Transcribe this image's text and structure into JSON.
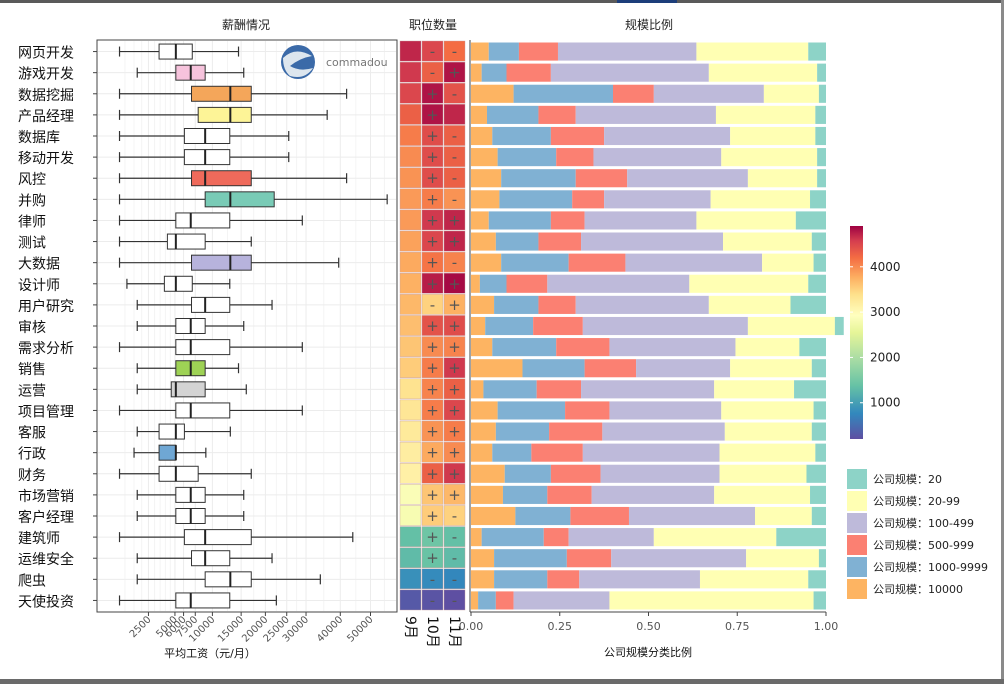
{
  "chart_data": [
    {
      "type": "boxplot",
      "title": "薪酬情况",
      "xlabel": "平均工资（元/月）",
      "ylabel": "",
      "x_scale": "sqrt",
      "x_ticks": [
        2500,
        5000,
        6000,
        7500,
        10000,
        15000,
        20000,
        25000,
        30000,
        40000,
        50000
      ],
      "xlim": [
        700,
        60000
      ],
      "grid": true,
      "categories": [
        "网页开发",
        "游戏开发",
        "数据挖掘",
        "产品经理",
        "数据库",
        "移动开发",
        "风控",
        "并购",
        "律师",
        "测试",
        "大数据",
        "设计师",
        "用户研究",
        "审核",
        "需求分析",
        "销售",
        "运营",
        "项目管理",
        "客服",
        "行政",
        "财务",
        "市场营销",
        "客户经理",
        "建筑师",
        "运维安全",
        "爬虫",
        "天使投资"
      ],
      "boxes": [
        {
          "min": 750,
          "q1": 3400,
          "median": 5100,
          "q3": 7100,
          "max": 14500,
          "fill": "#ffffff"
        },
        {
          "min": 1700,
          "q1": 5100,
          "median": 6900,
          "q3": 8900,
          "max": 15500,
          "fill": "#f6c3dc"
        },
        {
          "min": 750,
          "q1": 7000,
          "median": 13000,
          "q3": 17000,
          "max": 42000,
          "fill": "#f4a65a"
        },
        {
          "min": 750,
          "q1": 7900,
          "median": 13000,
          "q3": 17000,
          "max": 36000,
          "fill": "#fdf497"
        },
        {
          "min": 750,
          "q1": 6100,
          "median": 8900,
          "q3": 12900,
          "max": 25500,
          "fill": "#ffffff"
        },
        {
          "min": 750,
          "q1": 6100,
          "median": 8900,
          "q3": 12900,
          "max": 25500,
          "fill": "#ffffff"
        },
        {
          "min": 750,
          "q1": 7000,
          "median": 8900,
          "q3": 17000,
          "max": 42000,
          "fill": "#ef6a5b"
        },
        {
          "min": 750,
          "q1": 8900,
          "median": 13000,
          "q3": 22000,
          "max": 56000,
          "fill": "#79cbb6"
        },
        {
          "min": 750,
          "q1": 5100,
          "median": 6900,
          "q3": 12900,
          "max": 29000,
          "fill": "#ffffff"
        },
        {
          "min": 750,
          "q1": 4200,
          "median": 5100,
          "q3": 8900,
          "max": 17000,
          "fill": "#ffffff"
        },
        {
          "min": 750,
          "q1": 7000,
          "median": 13000,
          "q3": 17000,
          "max": 39500,
          "fill": "#b7b3dc"
        },
        {
          "min": 1100,
          "q1": 3900,
          "median": 5100,
          "q3": 7100,
          "max": 12900,
          "fill": "#ffffff"
        },
        {
          "min": 1700,
          "q1": 7000,
          "median": 8900,
          "q3": 12900,
          "max": 21500,
          "fill": "#ffffff"
        },
        {
          "min": 1700,
          "q1": 5100,
          "median": 6900,
          "q3": 8900,
          "max": 15500,
          "fill": "#ffffff"
        },
        {
          "min": 750,
          "q1": 5100,
          "median": 6900,
          "q3": 12900,
          "max": 29000,
          "fill": "#ffffff"
        },
        {
          "min": 1700,
          "q1": 5100,
          "median": 6900,
          "q3": 8900,
          "max": 14500,
          "fill": "#9ed255"
        },
        {
          "min": 1700,
          "q1": 4600,
          "median": 5100,
          "q3": 8900,
          "max": 16000,
          "fill": "#d3d3d3"
        },
        {
          "min": 750,
          "q1": 5100,
          "median": 6900,
          "q3": 12900,
          "max": 29000,
          "fill": "#ffffff"
        },
        {
          "min": 1700,
          "q1": 3400,
          "median": 5100,
          "q3": 6100,
          "max": 13000,
          "fill": "#ffffff"
        },
        {
          "min": 1500,
          "q1": 3400,
          "median": 5100,
          "q3": 5100,
          "max": 9000,
          "fill": "#6fa7d4"
        },
        {
          "min": 750,
          "q1": 3400,
          "median": 5100,
          "q3": 7900,
          "max": 17000,
          "fill": "#ffffff"
        },
        {
          "min": 1700,
          "q1": 5100,
          "median": 6900,
          "q3": 8900,
          "max": 15500,
          "fill": "#ffffff"
        },
        {
          "min": 1700,
          "q1": 5100,
          "median": 6900,
          "q3": 8900,
          "max": 15500,
          "fill": "#ffffff"
        },
        {
          "min": 750,
          "q1": 6100,
          "median": 8900,
          "q3": 17000,
          "max": 44000,
          "fill": "#ffffff"
        },
        {
          "min": 1700,
          "q1": 7000,
          "median": 8900,
          "q3": 12900,
          "max": 21500,
          "fill": "#ffffff"
        },
        {
          "min": 1700,
          "q1": 8900,
          "median": 13000,
          "q3": 17000,
          "max": 34000,
          "fill": "#ffffff"
        },
        {
          "min": 750,
          "q1": 5100,
          "median": 6900,
          "q3": 12900,
          "max": 22500,
          "fill": "#ffffff"
        }
      ],
      "watermark": "commadou"
    },
    {
      "type": "heatmap",
      "title": "职位数量",
      "columns": [
        "9月",
        "10月",
        "11月"
      ],
      "colorbar": {
        "ticks": [
          1000,
          2000,
          3000,
          4000
        ],
        "range": [
          200,
          4900
        ],
        "palette": "Spectral (reversed)"
      },
      "rows": [
        {
          "values": [
            4700,
            4500,
            4200
          ],
          "signs": [
            "",
            "-",
            "-"
          ]
        },
        {
          "values": [
            4600,
            4300,
            4800
          ],
          "signs": [
            "",
            "-",
            "+"
          ]
        },
        {
          "values": [
            4500,
            4800,
            4400
          ],
          "signs": [
            "",
            "+",
            "-"
          ]
        },
        {
          "values": [
            4300,
            4800,
            4700
          ],
          "signs": [
            "",
            "+",
            ""
          ]
        },
        {
          "values": [
            4100,
            4450,
            4300
          ],
          "signs": [
            "",
            "+",
            "-"
          ]
        },
        {
          "values": [
            4000,
            4450,
            4300
          ],
          "signs": [
            "",
            "+",
            "-"
          ]
        },
        {
          "values": [
            3950,
            4450,
            4300
          ],
          "signs": [
            "",
            "+",
            "-"
          ]
        },
        {
          "values": [
            3900,
            4100,
            3950
          ],
          "signs": [
            "",
            "+",
            "-"
          ]
        },
        {
          "values": [
            3900,
            4600,
            4700
          ],
          "signs": [
            "",
            "+",
            "+"
          ]
        },
        {
          "values": [
            3850,
            4500,
            4700
          ],
          "signs": [
            "",
            "+",
            "+"
          ]
        },
        {
          "values": [
            3800,
            4150,
            4050
          ],
          "signs": [
            "",
            "+",
            "-"
          ]
        },
        {
          "values": [
            3750,
            4750,
            4850
          ],
          "signs": [
            "",
            "+",
            "+"
          ]
        },
        {
          "values": [
            3700,
            3500,
            3750
          ],
          "signs": [
            "",
            "-",
            "+"
          ]
        },
        {
          "values": [
            3650,
            4400,
            4450
          ],
          "signs": [
            "",
            "+",
            "+"
          ]
        },
        {
          "values": [
            3600,
            4000,
            4050
          ],
          "signs": [
            "",
            "+",
            "+"
          ]
        },
        {
          "values": [
            3550,
            4100,
            4600
          ],
          "signs": [
            "",
            "+",
            "+"
          ]
        },
        {
          "values": [
            3350,
            4050,
            4300
          ],
          "signs": [
            "",
            "+",
            "+"
          ]
        },
        {
          "values": [
            3300,
            4100,
            4500
          ],
          "signs": [
            "",
            "+",
            "+"
          ]
        },
        {
          "values": [
            3250,
            3950,
            4100
          ],
          "signs": [
            "",
            "+",
            "+"
          ]
        },
        {
          "values": [
            3200,
            3800,
            4000
          ],
          "signs": [
            "",
            "+",
            "+"
          ]
        },
        {
          "values": [
            3150,
            4300,
            4600
          ],
          "signs": [
            "",
            "+",
            "+"
          ]
        },
        {
          "values": [
            2850,
            3600,
            3700
          ],
          "signs": [
            "",
            "+",
            "+"
          ]
        },
        {
          "values": [
            2800,
            3550,
            3500
          ],
          "signs": [
            "",
            "+",
            "-"
          ]
        },
        {
          "values": [
            1350,
            1450,
            1350
          ],
          "signs": [
            "",
            "+",
            "-"
          ]
        },
        {
          "values": [
            1300,
            1400,
            1300
          ],
          "signs": [
            "",
            "+",
            "-"
          ]
        },
        {
          "values": [
            850,
            800,
            750
          ],
          "signs": [
            "",
            "-",
            "-"
          ]
        },
        {
          "values": [
            300,
            250,
            200
          ],
          "signs": [
            "",
            "-",
            "-"
          ]
        }
      ]
    },
    {
      "type": "bar",
      "stacked": true,
      "orientation": "horizontal",
      "title": "规模比例",
      "xlabel": "公司规模分类比例",
      "xlim": [
        0,
        1
      ],
      "x_ticks": [
        "0.00",
        "0.25",
        "0.50",
        "0.75",
        "1.00"
      ],
      "legend_position": "right",
      "series": [
        {
          "name": "公司规模：10000",
          "color": "#fdb462",
          "values": [
            0.05,
            0.03,
            0.12,
            0.045,
            0.06,
            0.075,
            0.085,
            0.08,
            0.05,
            0.07,
            0.085,
            0.025,
            0.065,
            0.04,
            0.06,
            0.145,
            0.035,
            0.075,
            0.07,
            0.06,
            0.095,
            0.09,
            0.125,
            0.03,
            0.065,
            0.065,
            0.02
          ]
        },
        {
          "name": "公司规模：1000-9999",
          "color": "#80b1d3",
          "values": [
            0.085,
            0.07,
            0.28,
            0.145,
            0.165,
            0.165,
            0.21,
            0.205,
            0.175,
            0.12,
            0.19,
            0.075,
            0.125,
            0.135,
            0.18,
            0.175,
            0.15,
            0.19,
            0.15,
            0.11,
            0.13,
            0.125,
            0.155,
            0.175,
            0.205,
            0.15,
            0.05
          ]
        },
        {
          "name": "公司规模：500-999",
          "color": "#fb8072",
          "values": [
            0.11,
            0.125,
            0.115,
            0.105,
            0.15,
            0.105,
            0.145,
            0.09,
            0.095,
            0.12,
            0.16,
            0.115,
            0.105,
            0.14,
            0.15,
            0.145,
            0.125,
            0.125,
            0.15,
            0.145,
            0.14,
            0.125,
            0.165,
            0.07,
            0.125,
            0.09,
            0.05
          ]
        },
        {
          "name": "公司规模：100-499",
          "color": "#bebada",
          "values": [
            0.39,
            0.445,
            0.31,
            0.395,
            0.355,
            0.36,
            0.34,
            0.3,
            0.315,
            0.4,
            0.385,
            0.4,
            0.375,
            0.465,
            0.355,
            0.265,
            0.375,
            0.315,
            0.345,
            0.385,
            0.335,
            0.345,
            0.355,
            0.24,
            0.38,
            0.34,
            0.27
          ]
        },
        {
          "name": "公司规模：20-99",
          "color": "#ffffb3",
          "values": [
            0.315,
            0.305,
            0.155,
            0.28,
            0.24,
            0.27,
            0.195,
            0.28,
            0.28,
            0.25,
            0.145,
            0.335,
            0.23,
            0.245,
            0.18,
            0.23,
            0.225,
            0.26,
            0.245,
            0.27,
            0.245,
            0.27,
            0.16,
            0.345,
            0.205,
            0.305,
            0.575
          ]
        },
        {
          "name": "公司规模：20",
          "color": "#8dd3c7",
          "values": [
            0.05,
            0.025,
            0.02,
            0.03,
            0.03,
            0.025,
            0.025,
            0.045,
            0.085,
            0.04,
            0.035,
            0.05,
            0.1,
            0.025,
            0.075,
            0.04,
            0.09,
            0.035,
            0.04,
            0.03,
            0.055,
            0.045,
            0.04,
            0.14,
            0.02,
            0.05,
            0.035
          ]
        }
      ]
    }
  ]
}
